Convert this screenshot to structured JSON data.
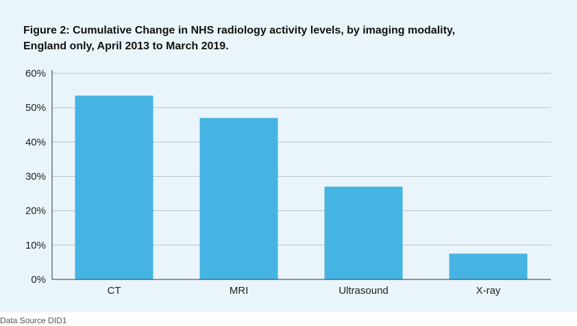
{
  "figure": {
    "title_line1": "Figure 2: Cumulative Change in NHS radiology activity levels, by imaging modality,",
    "title_line2": "England only, April 2013 to March 2019.",
    "source": "Data Source DID1"
  },
  "colors": {
    "bar": "#45b4e3",
    "grid": "#b9c4c8",
    "axis": "#333333",
    "background": "#e9f5fb"
  },
  "chart_data": {
    "type": "bar",
    "categories": [
      "CT",
      "MRI",
      "Ultrasound",
      "X-ray"
    ],
    "values": [
      53.5,
      47,
      27,
      7.5
    ],
    "ylim": [
      0,
      60
    ],
    "yticks": [
      0,
      10,
      20,
      30,
      40,
      50,
      60
    ],
    "ytick_labels": [
      "0%",
      "10%",
      "20%",
      "30%",
      "40%",
      "50%",
      "60%"
    ],
    "grid": true
  }
}
